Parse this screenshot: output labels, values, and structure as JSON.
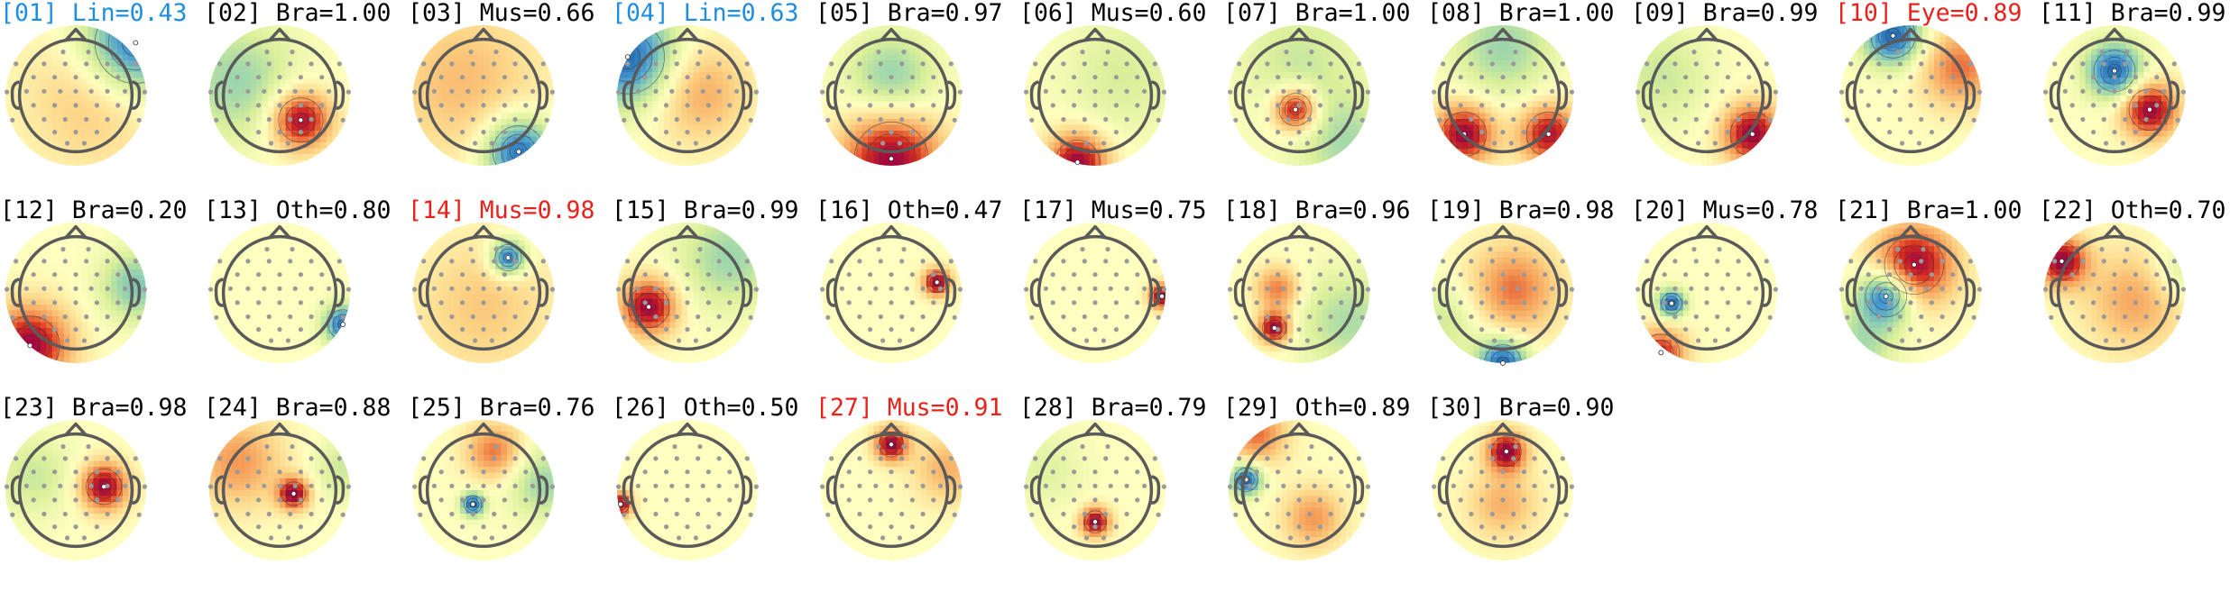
{
  "colors": {
    "default_label": "#000000",
    "line_label": "#1f8ee0",
    "alert_label": "#e8221b",
    "head_outline": "#5a5a5a",
    "sensor": "#9a9a9a",
    "colormap": [
      "#2166ac",
      "#4a9bd1",
      "#8ecfb0",
      "#d9ef9a",
      "#ffffbf",
      "#fdd587",
      "#f49a55",
      "#d7301f",
      "#9e0142"
    ]
  },
  "components": [
    {
      "id": "01",
      "label": "[01] Lin=0.43",
      "color": "line",
      "blobs": [
        [
          0.85,
          -0.75,
          -1,
          0.55
        ],
        [
          0.3,
          0.0,
          0.35,
          0.7
        ]
      ]
    },
    {
      "id": "02",
      "label": "[02] Bra=1.00",
      "color": "default",
      "blobs": [
        [
          0.3,
          0.35,
          1,
          0.3
        ],
        [
          -0.6,
          -0.2,
          -0.45,
          0.6
        ]
      ]
    },
    {
      "id": "03",
      "label": "[03] Mus=0.66",
      "color": "default",
      "blobs": [
        [
          0.5,
          0.8,
          -1,
          0.35
        ],
        [
          -0.3,
          -0.2,
          0.35,
          0.8
        ]
      ]
    },
    {
      "id": "04",
      "label": "[04] Lin=0.63",
      "color": "line",
      "blobs": [
        [
          -0.85,
          -0.55,
          -1,
          0.5
        ],
        [
          0.15,
          -0.05,
          0.45,
          0.5
        ]
      ]
    },
    {
      "id": "05",
      "label": "[05] Bra=0.97",
      "color": "default",
      "blobs": [
        [
          0.0,
          0.9,
          1,
          0.5
        ],
        [
          0.0,
          -0.25,
          -0.5,
          0.45
        ]
      ]
    },
    {
      "id": "06",
      "label": "[06] Mus=0.60",
      "color": "default",
      "blobs": [
        [
          -0.25,
          0.95,
          1,
          0.3
        ],
        [
          0.4,
          -0.3,
          -0.25,
          0.6
        ]
      ]
    },
    {
      "id": "07",
      "label": "[07] Bra=1.00",
      "color": "default",
      "blobs": [
        [
          -0.05,
          0.2,
          1,
          0.22
        ],
        [
          0.0,
          -0.5,
          -0.3,
          0.6
        ],
        [
          0.7,
          0.7,
          -0.4,
          0.5
        ]
      ]
    },
    {
      "id": "08",
      "label": "[08] Bra=1.00",
      "color": "default",
      "blobs": [
        [
          -0.55,
          0.55,
          1,
          0.3
        ],
        [
          0.65,
          0.55,
          0.9,
          0.3
        ],
        [
          0.0,
          -0.7,
          -0.45,
          0.5
        ]
      ]
    },
    {
      "id": "09",
      "label": "[09] Bra=0.99",
      "color": "default",
      "blobs": [
        [
          0.65,
          0.55,
          1,
          0.3
        ],
        [
          -0.65,
          -0.3,
          -0.3,
          0.5
        ]
      ]
    },
    {
      "id": "10",
      "label": "[10] Eye=0.89",
      "color": "alert",
      "blobs": [
        [
          -0.25,
          -0.85,
          -1,
          0.3
        ],
        [
          0.7,
          -0.4,
          0.6,
          0.4
        ]
      ]
    },
    {
      "id": "11",
      "label": "[11] Bra=0.99",
      "color": "default",
      "blobs": [
        [
          0.0,
          -0.35,
          -1,
          0.28
        ],
        [
          0.5,
          0.2,
          1,
          0.28
        ]
      ]
    },
    {
      "id": "12",
      "label": "[12] Bra=0.20",
      "color": "default",
      "blobs": [
        [
          -0.65,
          0.75,
          1,
          0.4
        ],
        [
          0.85,
          -0.1,
          -0.55,
          0.35
        ]
      ]
    },
    {
      "id": "13",
      "label": "[13] Oth=0.80",
      "color": "default",
      "blobs": [
        [
          0.9,
          0.45,
          -0.9,
          0.2
        ]
      ]
    },
    {
      "id": "14",
      "label": "[14] Mus=0.98",
      "color": "alert",
      "blobs": [
        [
          0.35,
          -0.5,
          -1,
          0.18
        ],
        [
          0.0,
          0.2,
          0.3,
          0.7
        ]
      ]
    },
    {
      "id": "15",
      "label": "[15] Bra=0.99",
      "color": "default",
      "blobs": [
        [
          -0.55,
          0.2,
          1,
          0.28
        ],
        [
          0.6,
          -0.5,
          -0.45,
          0.5
        ]
      ]
    },
    {
      "id": "16",
      "label": "[16] Oth=0.47",
      "color": "default",
      "blobs": [
        [
          0.65,
          -0.15,
          1,
          0.14
        ]
      ]
    },
    {
      "id": "17",
      "label": "[17] Mus=0.75",
      "color": "default",
      "blobs": [
        [
          0.95,
          0.05,
          1,
          0.13
        ]
      ]
    },
    {
      "id": "18",
      "label": "[18] Bra=0.96",
      "color": "default",
      "blobs": [
        [
          -0.35,
          0.5,
          1,
          0.16
        ],
        [
          -0.3,
          -0.05,
          0.6,
          0.22
        ],
        [
          0.7,
          0.4,
          -0.4,
          0.5
        ]
      ]
    },
    {
      "id": "19",
      "label": "[19] Bra=0.98",
      "color": "default",
      "blobs": [
        [
          0.15,
          -0.05,
          0.6,
          0.45
        ],
        [
          0.0,
          1.0,
          -1,
          0.25
        ],
        [
          -0.8,
          0.4,
          -0.3,
          0.4
        ]
      ]
    },
    {
      "id": "20",
      "label": "[20] Mus=0.78",
      "color": "default",
      "blobs": [
        [
          -0.5,
          0.15,
          -1,
          0.14
        ],
        [
          -0.65,
          0.85,
          0.8,
          0.25
        ]
      ]
    },
    {
      "id": "21",
      "label": "[21] Bra=1.00",
      "color": "default",
      "blobs": [
        [
          0.05,
          -0.4,
          1,
          0.4
        ],
        [
          -0.35,
          0.05,
          -1,
          0.28
        ],
        [
          -0.7,
          0.75,
          -0.4,
          0.35
        ]
      ]
    },
    {
      "id": "22",
      "label": "[22] Oth=0.70",
      "color": "default",
      "blobs": [
        [
          -0.75,
          -0.45,
          1,
          0.25
        ],
        [
          0.3,
          0.1,
          0.45,
          0.5
        ],
        [
          0.9,
          -0.3,
          -0.3,
          0.3
        ]
      ]
    },
    {
      "id": "23",
      "label": "[23] Bra=0.98",
      "color": "default",
      "blobs": [
        [
          0.4,
          -0.05,
          1,
          0.24
        ],
        [
          -0.6,
          -0.2,
          -0.3,
          0.4
        ]
      ]
    },
    {
      "id": "24",
      "label": "[24] Bra=0.88",
      "color": "default",
      "blobs": [
        [
          0.2,
          0.05,
          1,
          0.16
        ],
        [
          -0.6,
          -0.4,
          0.5,
          0.45
        ],
        [
          0.9,
          -0.3,
          -0.3,
          0.3
        ]
      ]
    },
    {
      "id": "25",
      "label": "[25] Bra=0.76",
      "color": "default",
      "blobs": [
        [
          -0.15,
          0.2,
          -1,
          0.12
        ],
        [
          0.15,
          -0.55,
          0.6,
          0.28
        ],
        [
          0.85,
          -0.1,
          -0.45,
          0.35
        ]
      ]
    },
    {
      "id": "26",
      "label": "[26] Oth=0.50",
      "color": "default",
      "blobs": [
        [
          -0.95,
          0.2,
          1,
          0.12
        ]
      ]
    },
    {
      "id": "27",
      "label": "[27] Mus=0.91",
      "color": "alert",
      "blobs": [
        [
          0.0,
          -0.65,
          1,
          0.17
        ],
        [
          0.8,
          -0.3,
          0.4,
          0.35
        ]
      ]
    },
    {
      "id": "28",
      "label": "[28] Bra=0.79",
      "color": "default",
      "blobs": [
        [
          0.0,
          0.45,
          1,
          0.15
        ],
        [
          -0.7,
          -0.3,
          -0.2,
          0.4
        ]
      ]
    },
    {
      "id": "29",
      "label": "[29] Oth=0.89",
      "color": "default",
      "blobs": [
        [
          -0.75,
          -0.15,
          -1,
          0.16
        ],
        [
          0.2,
          0.4,
          0.5,
          0.3
        ],
        [
          -0.6,
          -0.8,
          0.6,
          0.3
        ]
      ]
    },
    {
      "id": "30",
      "label": "[30] Bra=0.90",
      "color": "default",
      "blobs": [
        [
          0.05,
          -0.55,
          1,
          0.2
        ],
        [
          0.0,
          0.2,
          0.4,
          0.35
        ]
      ]
    }
  ]
}
